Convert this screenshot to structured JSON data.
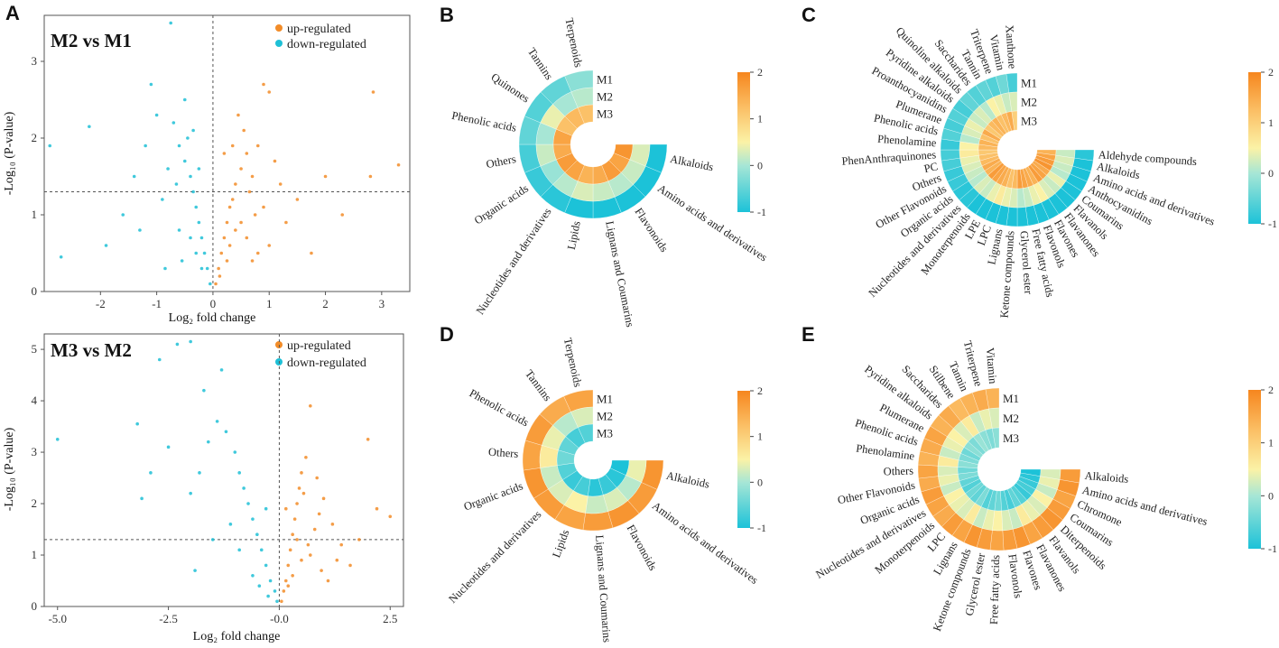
{
  "colors": {
    "up": "#F28C28",
    "down": "#1EC0D6",
    "scale": [
      "#1CC2D8",
      "#A5E6D6",
      "#FBF2A6",
      "#FBBE64",
      "#F6861E"
    ]
  },
  "volcano_a1": {
    "letter": "A",
    "comparison": "M2 vs M1",
    "legend_up": "up-regulated",
    "legend_down": "down-regulated",
    "xlabel": "Log₂ fold change",
    "ylabel": "-Log₁₀ (P-value)",
    "xticks": [
      "-2",
      "-1",
      "0",
      "1",
      "2",
      "3"
    ],
    "yticks": [
      "0",
      "1",
      "2",
      "3"
    ]
  },
  "volcano_a2": {
    "comparison": "M3 vs M2",
    "legend_up": "up-regulated",
    "legend_down": "down-regulated",
    "xlabel": "Log₂ fold change",
    "ylabel": "-Log₁₀ (P-value)",
    "xticks": [
      "-5.0",
      "-2.5",
      "-0.0",
      "2.5"
    ],
    "yticks": [
      "0",
      "1",
      "2",
      "3",
      "4",
      "5"
    ]
  },
  "panel_b": {
    "letter": "B",
    "rings": [
      "M1",
      "M2",
      "M3"
    ],
    "colorbar_ticks": [
      "2",
      "1",
      "0",
      "-1"
    ]
  },
  "panel_c": {
    "letter": "C",
    "rings": [
      "M1",
      "M2",
      "M3"
    ],
    "colorbar_ticks": [
      "2",
      "1",
      "0",
      "-1"
    ]
  },
  "panel_d": {
    "letter": "D",
    "rings": [
      "M1",
      "M2",
      "M3"
    ],
    "colorbar_ticks": [
      "2",
      "1",
      "0",
      "-1"
    ]
  },
  "panel_e": {
    "letter": "E",
    "rings": [
      "M1",
      "M2",
      "M3"
    ],
    "colorbar_ticks": [
      "2",
      "1",
      "0",
      "-1"
    ]
  },
  "chart_data": [
    {
      "type": "scatter",
      "panel": "A (top)",
      "title": "M2 vs M1",
      "xlabel": "Log₂ fold change",
      "ylabel": "-Log₁₀ (P-value)",
      "xlim": [
        -3,
        3.5
      ],
      "ylim": [
        0,
        3.6
      ],
      "threshold_y": 1.3,
      "threshold_x": 0,
      "series": [
        {
          "name": "up-regulated",
          "points": [
            [
              0.05,
              0.1
            ],
            [
              0.1,
              0.3
            ],
            [
              0.15,
              0.5
            ],
            [
              0.2,
              0.7
            ],
            [
              0.25,
              0.9
            ],
            [
              0.3,
              1.1
            ],
            [
              0.35,
              1.2
            ],
            [
              0.4,
              1.4
            ],
            [
              0.5,
              1.6
            ],
            [
              0.6,
              1.8
            ],
            [
              0.7,
              1.5
            ],
            [
              0.8,
              1.9
            ],
            [
              0.9,
              2.7
            ],
            [
              1.0,
              2.6
            ],
            [
              1.1,
              1.7
            ],
            [
              1.2,
              1.4
            ],
            [
              0.45,
              2.3
            ],
            [
              0.55,
              2.1
            ],
            [
              0.65,
              1.3
            ],
            [
              0.75,
              1.0
            ],
            [
              0.3,
              0.6
            ],
            [
              0.4,
              0.8
            ],
            [
              0.5,
              0.9
            ],
            [
              0.6,
              0.7
            ],
            [
              0.8,
              0.5
            ],
            [
              1.3,
              0.9
            ],
            [
              1.5,
              1.2
            ],
            [
              1.75,
              0.5
            ],
            [
              2.0,
              1.5
            ],
            [
              2.3,
              1.0
            ],
            [
              2.8,
              1.5
            ],
            [
              2.85,
              2.6
            ],
            [
              3.3,
              1.65
            ],
            [
              0.2,
              1.8
            ],
            [
              0.35,
              1.9
            ],
            [
              0.25,
              0.4
            ],
            [
              0.12,
              0.2
            ],
            [
              0.7,
              0.4
            ],
            [
              1.0,
              0.6
            ],
            [
              0.9,
              1.1
            ]
          ]
        },
        {
          "name": "down-regulated",
          "points": [
            [
              -0.05,
              0.1
            ],
            [
              -0.1,
              0.3
            ],
            [
              -0.15,
              0.5
            ],
            [
              -0.2,
              0.7
            ],
            [
              -0.25,
              0.9
            ],
            [
              -0.3,
              1.1
            ],
            [
              -0.35,
              1.3
            ],
            [
              -0.4,
              1.5
            ],
            [
              -0.5,
              1.7
            ],
            [
              -0.6,
              1.9
            ],
            [
              -0.7,
              2.2
            ],
            [
              -0.8,
              1.6
            ],
            [
              -0.9,
              1.2
            ],
            [
              -1.0,
              2.3
            ],
            [
              -0.75,
              3.5
            ],
            [
              -0.5,
              2.5
            ],
            [
              -1.2,
              1.9
            ],
            [
              -1.4,
              1.5
            ],
            [
              -1.6,
              1.0
            ],
            [
              -1.9,
              0.6
            ],
            [
              -2.2,
              2.15
            ],
            [
              -2.9,
              1.9
            ],
            [
              -2.7,
              0.45
            ],
            [
              -1.1,
              2.7
            ],
            [
              -0.3,
              0.5
            ],
            [
              -0.4,
              0.7
            ],
            [
              -0.6,
              0.8
            ],
            [
              -0.2,
              0.3
            ],
            [
              -0.55,
              0.4
            ],
            [
              -0.85,
              0.3
            ],
            [
              -1.3,
              0.8
            ],
            [
              -0.45,
              2.0
            ],
            [
              -0.65,
              1.4
            ],
            [
              -0.25,
              1.6
            ],
            [
              -0.35,
              2.1
            ]
          ]
        }
      ]
    },
    {
      "type": "scatter",
      "panel": "A (bottom)",
      "title": "M3 vs M2",
      "xlabel": "Log₂ fold change",
      "ylabel": "-Log₁₀ (P-value)",
      "xlim": [
        -5.3,
        2.8
      ],
      "ylim": [
        0,
        5.3
      ],
      "threshold_y": 1.3,
      "threshold_x": 0,
      "series": [
        {
          "name": "up-regulated",
          "points": [
            [
              0.05,
              0.1
            ],
            [
              0.1,
              0.3
            ],
            [
              0.15,
              0.5
            ],
            [
              0.2,
              0.8
            ],
            [
              0.25,
              1.1
            ],
            [
              0.3,
              1.4
            ],
            [
              0.35,
              1.7
            ],
            [
              0.4,
              2.0
            ],
            [
              0.45,
              2.3
            ],
            [
              0.5,
              2.6
            ],
            [
              0.6,
              2.9
            ],
            [
              0.7,
              3.9
            ],
            [
              0.8,
              1.5
            ],
            [
              0.9,
              1.8
            ],
            [
              1.0,
              2.1
            ],
            [
              1.2,
              1.6
            ],
            [
              1.4,
              1.2
            ],
            [
              1.6,
              0.8
            ],
            [
              1.8,
              1.3
            ],
            [
              2.0,
              3.25
            ],
            [
              2.2,
              1.9
            ],
            [
              2.5,
              1.75
            ],
            [
              0.3,
              0.6
            ],
            [
              0.5,
              0.9
            ],
            [
              0.7,
              1.0
            ],
            [
              0.95,
              0.7
            ],
            [
              1.1,
              0.5
            ],
            [
              0.55,
              2.2
            ],
            [
              0.65,
              1.2
            ],
            [
              0.85,
              2.5
            ],
            [
              0.2,
              0.4
            ],
            [
              0.4,
              1.3
            ],
            [
              1.3,
              0.9
            ],
            [
              0.15,
              1.9
            ]
          ]
        },
        {
          "name": "down-regulated",
          "points": [
            [
              -0.05,
              0.1
            ],
            [
              -0.1,
              0.3
            ],
            [
              -0.2,
              0.5
            ],
            [
              -0.3,
              0.8
            ],
            [
              -0.4,
              1.1
            ],
            [
              -0.5,
              1.4
            ],
            [
              -0.6,
              1.7
            ],
            [
              -0.7,
              2.0
            ],
            [
              -0.8,
              2.3
            ],
            [
              -0.9,
              2.6
            ],
            [
              -1.0,
              3.0
            ],
            [
              -1.2,
              3.4
            ],
            [
              -1.4,
              3.6
            ],
            [
              -1.6,
              3.2
            ],
            [
              -1.8,
              2.6
            ],
            [
              -2.0,
              2.2
            ],
            [
              -2.3,
              5.1
            ],
            [
              -2.0,
              5.15
            ],
            [
              -2.7,
              4.8
            ],
            [
              -3.2,
              3.55
            ],
            [
              -5.0,
              3.25
            ],
            [
              -2.9,
              2.6
            ],
            [
              -1.5,
              1.3
            ],
            [
              -1.1,
              1.6
            ],
            [
              -0.3,
              1.9
            ],
            [
              -0.6,
              0.6
            ],
            [
              -0.45,
              0.4
            ],
            [
              -0.25,
              0.2
            ],
            [
              -1.7,
              4.2
            ],
            [
              -2.5,
              3.1
            ],
            [
              -1.3,
              4.6
            ],
            [
              -0.9,
              1.1
            ],
            [
              -3.1,
              2.1
            ],
            [
              -1.9,
              0.7
            ]
          ]
        }
      ]
    },
    {
      "type": "radial_heatmap",
      "panel": "B",
      "rings": [
        "M1",
        "M2",
        "M3"
      ],
      "color_range": [
        -1,
        2
      ],
      "categories": [
        "Alkaloids",
        "Amino acids and derivatives",
        "Flavonoids",
        "Lignans and Coumarins",
        "Lipids",
        "Nucleotides and derivatives",
        "Organic acids",
        "Others",
        "Phenolic acids",
        "Quinones",
        "Tannins",
        "Terpenoids"
      ],
      "values": {
        "M1": [
          -1,
          -1,
          -1,
          -1,
          -1,
          -0.9,
          -0.8,
          -0.7,
          -0.5,
          -0.6,
          -0.5,
          -0.2
        ],
        "M2": [
          0.3,
          0.2,
          0.1,
          0.2,
          0.3,
          0.1,
          -0.1,
          0.2,
          0.0,
          0.4,
          0.0,
          0.1
        ],
        "M3": [
          1.8,
          1.6,
          1.7,
          1.5,
          1.4,
          1.6,
          1.7,
          1.5,
          1.6,
          1.2,
          1.3,
          1.2
        ]
      }
    },
    {
      "type": "radial_heatmap",
      "panel": "C",
      "rings": [
        "M1",
        "M2",
        "M3"
      ],
      "color_range": [
        -1,
        2
      ],
      "categories": [
        "Aldehyde compounds",
        "Alkaloids",
        "Amino acids and derivatives",
        "Anthocyanidins",
        "Coumarins",
        "Flavanols",
        "Flavanones",
        "Flavones",
        "Flavonols",
        "Free fatty acids",
        "Glycerol ester",
        "Ketone compounds",
        "Lignans",
        "LPC",
        "LPE",
        "Monoterpenoids",
        "Nucleotides and derivatives",
        "Organic acids",
        "Other Flavonoids",
        "Others",
        "PC",
        "PhenAnthraquinones",
        "Phenolamine",
        "Phenolic acids",
        "Plumerane",
        "Proanthocyanidins",
        "Pyridine alkaloids",
        "Quinoline alkaloids",
        "Saccharides",
        "Tannin",
        "Triterpene",
        "Vitamin",
        "Xanthone"
      ],
      "values": {
        "M1": [
          -0.9,
          -1,
          -1,
          -1,
          -1,
          -1,
          -1,
          -1,
          -1,
          -1,
          -1,
          -1,
          -1,
          -1,
          -1,
          -1,
          -0.9,
          -0.9,
          -0.8,
          -0.8,
          -0.7,
          -0.7,
          -0.8,
          -0.6,
          -0.7,
          -0.6,
          -0.7,
          -0.5,
          -0.6,
          -0.5,
          -0.6,
          -0.4,
          -0.7
        ],
        "M2": [
          0.2,
          0.3,
          0.2,
          0.1,
          0.4,
          0.2,
          0.3,
          0.5,
          0.4,
          0.2,
          0.1,
          0.3,
          0.4,
          0.6,
          0.4,
          0.2,
          0.3,
          0.1,
          0.2,
          0.3,
          0.4,
          0.6,
          0.5,
          0.1,
          0.3,
          0.4,
          0.2,
          0.3,
          0.1,
          0.5,
          0.4,
          0.2,
          0.3
        ],
        "M3": [
          1.4,
          1.6,
          1.7,
          1.8,
          1.5,
          1.6,
          1.7,
          1.4,
          1.5,
          1.6,
          1.7,
          1.3,
          1.2,
          1.4,
          1.5,
          1.6,
          1.7,
          1.4,
          1.5,
          1.3,
          1.2,
          1.1,
          1.3,
          1.4,
          1.2,
          1.5,
          1.1,
          1.3,
          1.4,
          1.2,
          1.3,
          1.5,
          1.0
        ]
      }
    },
    {
      "type": "radial_heatmap",
      "panel": "D",
      "rings": [
        "M1",
        "M2",
        "M3"
      ],
      "color_range": [
        -1,
        2
      ],
      "categories": [
        "Alkaloids",
        "Amino acids and derivatives",
        "Flavonoids",
        "Lignans and Coumarins",
        "Lipids",
        "Nucleotides and derivatives",
        "Organic acids",
        "Others",
        "Phenolic acids",
        "Tannins",
        "Terpenoids"
      ],
      "values": {
        "M1": [
          1.8,
          1.7,
          1.8,
          1.7,
          1.6,
          1.7,
          1.8,
          1.6,
          1.7,
          1.5,
          1.6
        ],
        "M2": [
          0.4,
          0.1,
          0.3,
          0.2,
          0.5,
          0.3,
          0.2,
          0.6,
          0.4,
          0.1,
          0.3
        ],
        "M3": [
          -1,
          -0.9,
          -0.8,
          -0.9,
          -0.7,
          -0.8,
          -0.6,
          -0.4,
          -0.5,
          -0.7,
          -0.6
        ]
      }
    },
    {
      "type": "radial_heatmap",
      "panel": "E",
      "rings": [
        "M1",
        "M2",
        "M3"
      ],
      "color_range": [
        -1,
        2
      ],
      "categories": [
        "Alkaloids",
        "Amino acids and derivatives",
        "Chromone",
        "Coumarins",
        "Diterpenoids",
        "Flavanols",
        "Flavanones",
        "Flavones",
        "Flavonols",
        "Free fatty acids",
        "Glycerol ester",
        "Ketone compounds",
        "Lignans",
        "LPC",
        "Monoterpenoids",
        "Nucleotides and derivatives",
        "Organic acids",
        "Other Flavonoids",
        "Others",
        "Phenolamine",
        "Phenolic acids",
        "Plumerane",
        "Pyridine alkaloids",
        "Saccharides",
        "Stilbene",
        "Tannin",
        "Triterpene",
        "Vitamin"
      ],
      "values": {
        "M1": [
          1.7,
          1.8,
          1.6,
          1.7,
          1.8,
          1.7,
          1.6,
          1.8,
          1.7,
          1.6,
          1.7,
          1.8,
          1.6,
          1.7,
          1.5,
          1.6,
          1.7,
          1.5,
          1.6,
          1.4,
          1.5,
          1.6,
          1.4,
          1.5,
          1.3,
          1.4,
          1.5,
          1.4
        ],
        "M2": [
          0.3,
          0.4,
          0.2,
          0.5,
          0.3,
          0.4,
          0.6,
          0.2,
          0.3,
          0.5,
          0.4,
          0.2,
          0.6,
          0.3,
          0.4,
          0.5,
          0.2,
          0.4,
          0.3,
          0.6,
          0.2,
          0.4,
          0.5,
          0.3,
          0.6,
          0.2,
          0.4,
          0.3
        ],
        "M3": [
          -1,
          -0.9,
          -0.8,
          -0.7,
          -0.8,
          -0.6,
          -0.5,
          -0.7,
          -0.6,
          -0.4,
          -0.5,
          -0.6,
          -0.3,
          -0.5,
          -0.4,
          -0.6,
          -0.5,
          -0.3,
          -0.4,
          -0.2,
          -0.3,
          -0.4,
          -0.2,
          -0.3,
          -0.1,
          -0.2,
          -0.3,
          -0.2
        ]
      }
    }
  ]
}
